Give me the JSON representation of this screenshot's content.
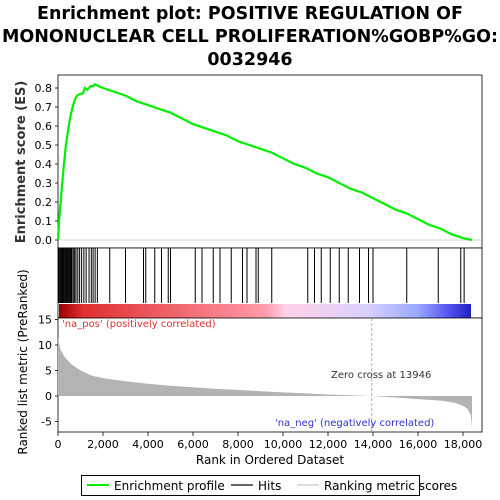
{
  "title": {
    "line1": "Enrichment plot: POSITIVE REGULATION OF",
    "line2": "MONONUCLEAR CELL PROLIFERATION%GOBP%GO:",
    "line3": "0032946"
  },
  "colors": {
    "es_curve": "#00ee00",
    "hits": "#000000",
    "metric_fill": "#b3b3b3",
    "pos_label": "#e03030",
    "neg_label": "#3030d0",
    "zero_cross_line": "#999999",
    "bar_pos": "#d40000",
    "bar_neg": "#0000c8"
  },
  "chart_data": [
    {
      "type": "line",
      "name": "enrichment-profile",
      "ylabel": "Enrichment score (ES)",
      "ylim": [
        0,
        0.85
      ],
      "yticks": [
        "0.0",
        "0.1",
        "0.2",
        "0.3",
        "0.4",
        "0.5",
        "0.6",
        "0.7",
        "0.8"
      ],
      "x": [
        0,
        50,
        150,
        250,
        350,
        450,
        550,
        650,
        750,
        850,
        1000,
        1100,
        1200,
        1300,
        1450,
        1550,
        1650,
        1800,
        2000,
        2500,
        3000,
        3500,
        4000,
        4500,
        5000,
        5500,
        6000,
        6500,
        7000,
        7500,
        8000,
        8500,
        9000,
        9500,
        10000,
        10500,
        11000,
        11500,
        12000,
        12500,
        13000,
        13500,
        14000,
        14500,
        15000,
        15500,
        16000,
        16500,
        17000,
        17500,
        18000,
        18400
      ],
      "y": [
        0.0,
        0.1,
        0.25,
        0.38,
        0.5,
        0.58,
        0.65,
        0.7,
        0.74,
        0.76,
        0.77,
        0.77,
        0.8,
        0.79,
        0.81,
        0.81,
        0.82,
        0.81,
        0.8,
        0.78,
        0.76,
        0.73,
        0.71,
        0.69,
        0.67,
        0.64,
        0.61,
        0.59,
        0.57,
        0.55,
        0.52,
        0.5,
        0.48,
        0.46,
        0.43,
        0.4,
        0.38,
        0.35,
        0.33,
        0.3,
        0.27,
        0.25,
        0.22,
        0.19,
        0.16,
        0.14,
        0.11,
        0.08,
        0.06,
        0.03,
        0.01,
        0.0
      ]
    },
    {
      "type": "hits",
      "name": "hits",
      "positions": [
        20,
        60,
        100,
        140,
        180,
        220,
        260,
        300,
        340,
        380,
        420,
        460,
        500,
        540,
        580,
        620,
        680,
        740,
        800,
        880,
        960,
        1050,
        1150,
        1250,
        1380,
        1480,
        1560,
        1650,
        1750,
        2300,
        3000,
        3800,
        3900,
        4300,
        4600,
        4900,
        5000,
        6100,
        6400,
        6900,
        7200,
        7700,
        8200,
        8400,
        8800,
        8900,
        9500,
        11100,
        11400,
        11700,
        12100,
        12500,
        12900,
        13400,
        13800,
        14000,
        15500,
        16900,
        17900,
        18050
      ]
    },
    {
      "type": "area",
      "name": "ranked-list-metric",
      "xlabel": "Rank in Ordered Dataset",
      "ylabel": "Ranked list metric (PreRanked)",
      "xlim": [
        0,
        18400
      ],
      "ylim": [
        -7,
        17.5
      ],
      "yticks": [
        "-5",
        "0",
        "5",
        "10",
        "15"
      ],
      "xticks": [
        "0",
        "2,000",
        "4,000",
        "6,000",
        "8,000",
        "10,000",
        "12,000",
        "14,000",
        "16,000",
        "18,000"
      ],
      "x": [
        0,
        100,
        300,
        600,
        1000,
        1500,
        2000,
        3000,
        4000,
        5000,
        6000,
        7000,
        8000,
        9000,
        10000,
        11000,
        12000,
        13000,
        13946,
        15000,
        16000,
        17000,
        17600,
        18000,
        18200,
        18350,
        18400
      ],
      "y": [
        11.5,
        9.2,
        7.6,
        6.2,
        5.0,
        4.0,
        3.5,
        2.9,
        2.4,
        2.0,
        1.7,
        1.4,
        1.2,
        0.95,
        0.7,
        0.5,
        0.3,
        0.15,
        0.0,
        -0.3,
        -0.6,
        -0.9,
        -1.3,
        -1.9,
        -2.5,
        -3.8,
        -6.5
      ],
      "annotations": {
        "pos": "'na_pos' (positively correlated)",
        "neg": "'na_neg' (negatively correlated)",
        "zero_cross": "Zero cross at 13946",
        "zero_cross_rank": 13946
      }
    }
  ],
  "legend": {
    "enrichment": "Enrichment profile",
    "hits": "Hits",
    "metric": "Ranking metric scores"
  }
}
